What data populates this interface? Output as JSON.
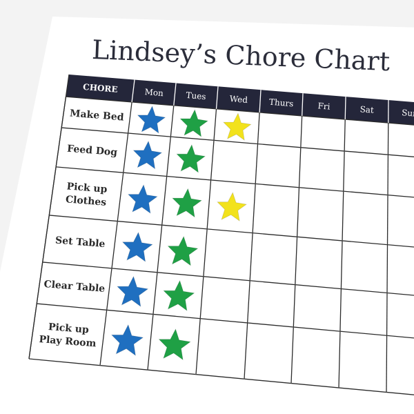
{
  "title": "Lindsey’s Chore Chart",
  "header": [
    "CHORE",
    "Mon",
    "Tues",
    "Wed",
    "Thurs",
    "Fri",
    "Sat",
    "Sun"
  ],
  "chores": [
    {
      "label": [
        "Make Bed"
      ],
      "stars": [
        "blue",
        "green",
        "yellow"
      ]
    },
    {
      "label": [
        "Feed Dog"
      ],
      "stars": [
        "blue",
        "green"
      ]
    },
    {
      "label": [
        "Pick up",
        "Clothes"
      ],
      "stars": [
        "blue",
        "green",
        "yellow"
      ]
    },
    {
      "label": [
        "Set Table"
      ],
      "stars": [
        "blue",
        "green"
      ]
    },
    {
      "label": [
        "Clear Table"
      ],
      "stars": [
        "blue",
        "green"
      ]
    },
    {
      "label": [
        "Pick up",
        "Play Room"
      ],
      "stars": [
        "blue",
        "green"
      ]
    }
  ],
  "colors": {
    "header_bar": "#24263a",
    "grid": "#2b2b2b",
    "blue": "#1f6fc0",
    "green": "#1fa045",
    "yellow": "#f2e21c",
    "paper": "#ffffff"
  }
}
